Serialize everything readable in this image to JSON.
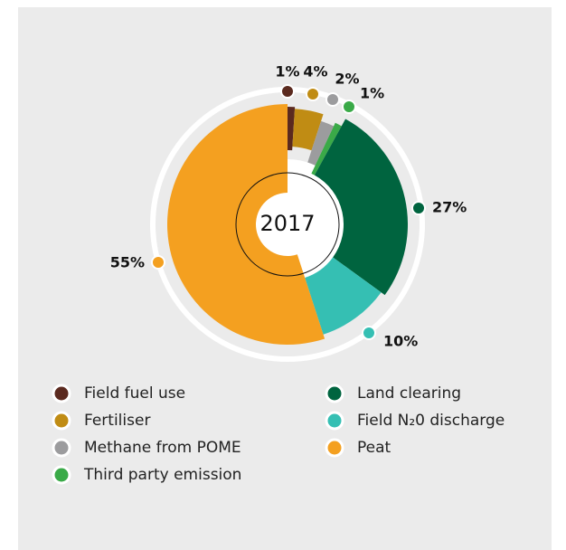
{
  "chart_data": {
    "type": "donut",
    "center_label": "2017",
    "categories": [
      "Field fuel use",
      "Fertiliser",
      "Methane from POME",
      "Third party emission",
      "Land clearing",
      "Field N₂0 discharge",
      "Peat"
    ],
    "values": [
      1,
      4,
      2,
      1,
      27,
      10,
      55
    ],
    "value_labels": [
      "1%",
      "4%",
      "2%",
      "1%",
      "27%",
      "10%",
      "55%"
    ],
    "colors": [
      "#5b2a1f",
      "#c08c14",
      "#9c9c9e",
      "#3aaa48",
      "#00643f",
      "#35bfb3",
      "#f4a020"
    ]
  }
}
